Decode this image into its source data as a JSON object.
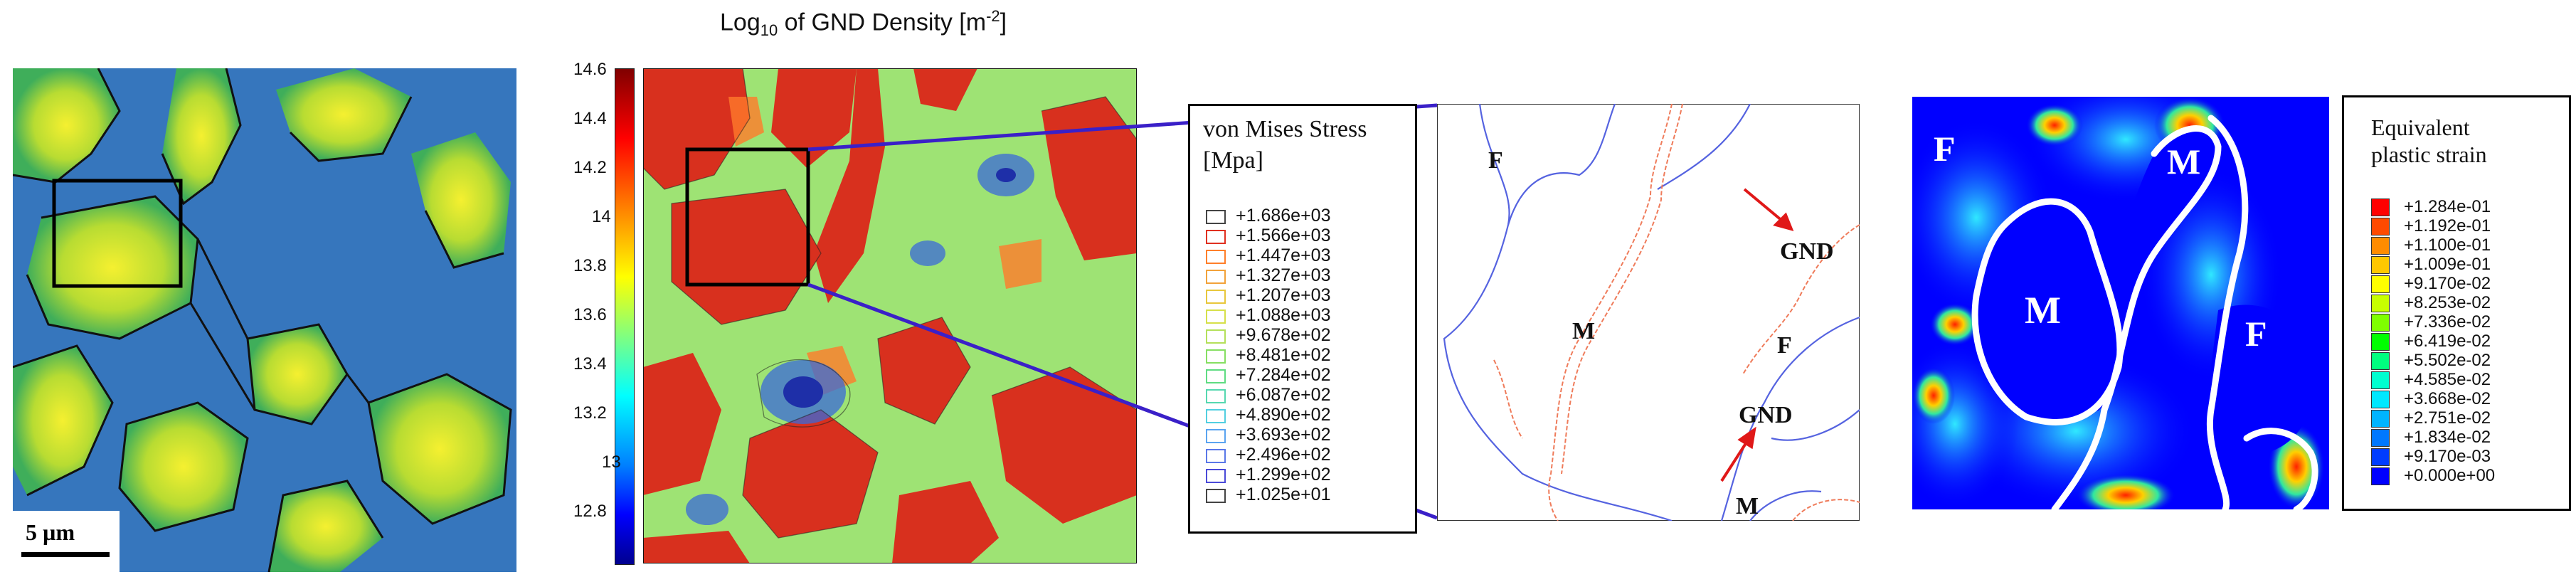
{
  "panel_a": {
    "scale_bar_label": "5 µm"
  },
  "panel_b": {
    "title_prefix": "Log",
    "title_sub": "10",
    "title_mid": " of GND Density [m",
    "title_sup": "-2",
    "title_suffix": "]",
    "colorbar_ticks": [
      "14.6",
      "14.4",
      "14.2",
      "14",
      "13.8",
      "13.6",
      "13.4",
      "13.2",
      "13",
      "12.8"
    ],
    "colorbar_colors": [
      "#00008f",
      "#0000ff",
      "#0080ff",
      "#00ffff",
      "#80ff80",
      "#ffff00",
      "#ff8000",
      "#ff0000",
      "#800000"
    ]
  },
  "panel_c": {
    "legend_title_line1": "von Mises Stress",
    "legend_title_line2": "[Mpa]",
    "legend_entries": [
      {
        "value": "+1.686e+03",
        "color": "#ffffff"
      },
      {
        "value": "+1.566e+03",
        "color": "#e03020"
      },
      {
        "value": "+1.447e+03",
        "color": "#ff7f2a"
      },
      {
        "value": "+1.327e+03",
        "color": "#f2a23a"
      },
      {
        "value": "+1.207e+03",
        "color": "#e8c73c"
      },
      {
        "value": "+1.088e+03",
        "color": "#d6e04a"
      },
      {
        "value": "+9.678e+02",
        "color": "#b4e05a"
      },
      {
        "value": "+8.481e+02",
        "color": "#86df62"
      },
      {
        "value": "+7.284e+02",
        "color": "#5fdc82"
      },
      {
        "value": "+6.087e+02",
        "color": "#56d8b0"
      },
      {
        "value": "+4.890e+02",
        "color": "#52cfe0"
      },
      {
        "value": "+3.693e+02",
        "color": "#5aa4f0"
      },
      {
        "value": "+2.496e+02",
        "color": "#5a78e8"
      },
      {
        "value": "+1.299e+02",
        "color": "#4a4ad8"
      },
      {
        "value": "+1.025e+01",
        "color": "#ffffff"
      }
    ],
    "labels": {
      "f": "F",
      "m1": "M",
      "f2": "F",
      "m2": "M",
      "gnd1": "GND",
      "gnd2": "GND"
    }
  },
  "panel_d": {
    "labels": {
      "f1": "F",
      "m1": "M",
      "m2": "M",
      "f2": "F"
    },
    "legend_title_line1": "Equivalent",
    "legend_title_line2": "plastic strain",
    "legend_entries": [
      {
        "value": "+1.284e-01",
        "color": "#ff0000"
      },
      {
        "value": "+1.192e-01",
        "color": "#ff4a00"
      },
      {
        "value": "+1.100e-01",
        "color": "#ff8c00"
      },
      {
        "value": "+1.009e-01",
        "color": "#ffc800"
      },
      {
        "value": "+9.170e-02",
        "color": "#ffff00"
      },
      {
        "value": "+8.253e-02",
        "color": "#c8ff00"
      },
      {
        "value": "+7.336e-02",
        "color": "#7fff00"
      },
      {
        "value": "+6.419e-02",
        "color": "#00ff00"
      },
      {
        "value": "+5.502e-02",
        "color": "#00ff7f"
      },
      {
        "value": "+4.585e-02",
        "color": "#00ffd0"
      },
      {
        "value": "+3.668e-02",
        "color": "#00e8ff"
      },
      {
        "value": "+2.751e-02",
        "color": "#00b4ff"
      },
      {
        "value": "+1.834e-02",
        "color": "#0078ff"
      },
      {
        "value": "+9.170e-03",
        "color": "#003cff"
      },
      {
        "value": "+0.000e+00",
        "color": "#0000ff"
      }
    ]
  }
}
